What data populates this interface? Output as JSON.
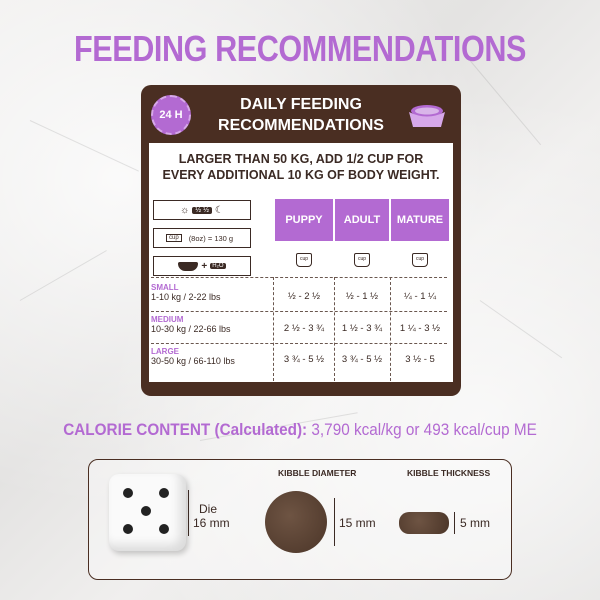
{
  "title": "FEEDING RECOMMENDATIONS",
  "panel": {
    "badge": "24 H",
    "heading_line1": "DAILY FEEDING",
    "heading_line2": "RECOMMENDATIONS",
    "note_line1": "LARGER THAN 50 KG, ADD 1/2 CUP FOR",
    "note_line2": "EVERY ADDITIONAL 10 KG OF BODY WEIGHT.",
    "legend": {
      "halves": "½ ½",
      "cup_text": "(8oz) = 130 g",
      "cup_label": "cup",
      "water": "H₂O"
    },
    "columns": [
      "PUPPY",
      "ADULT",
      "MATURE"
    ],
    "rows": [
      {
        "size": "SMALL",
        "range": "1-10 kg / 2-22 lbs",
        "values": [
          "½ - 2 ½",
          "½ - 1 ½",
          "¼ - 1 ¼"
        ]
      },
      {
        "size": "MEDIUM",
        "range": "10-30 kg / 22-66 lbs",
        "values": [
          "2 ½ - 3 ¾",
          "1 ½ - 3 ¾",
          "1 ¼ - 3 ½"
        ]
      },
      {
        "size": "LARGE",
        "range": "30-50 kg / 66-110 lbs",
        "values": [
          "3 ¾ - 5 ½",
          "3 ¾ - 5 ½",
          "3 ½ - 5"
        ]
      }
    ]
  },
  "calorie": {
    "label": "CALORIE CONTENT (Calculated):",
    "value": "3,790 kcal/kg or 493 kcal/cup ME"
  },
  "kibble": {
    "die_label": "Die",
    "die_size": "16 mm",
    "diameter_title": "KIBBLE DIAMETER",
    "diameter_value": "15 mm",
    "thickness_title": "KIBBLE THICKNESS",
    "thickness_value": "5 mm"
  },
  "colors": {
    "accent": "#b36ad2",
    "brown": "#4a2e22"
  }
}
